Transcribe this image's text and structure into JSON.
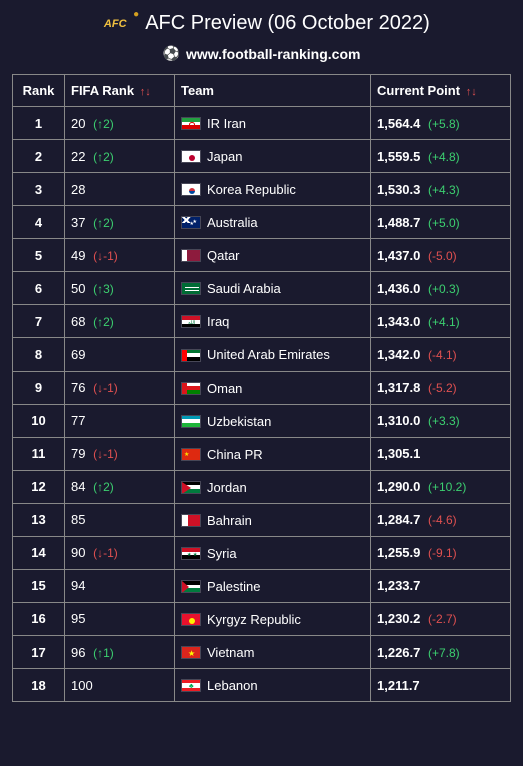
{
  "header": {
    "logo_text": "AFC",
    "title": "AFC Preview (06 October 2022)",
    "site": "www.football-ranking.com"
  },
  "table": {
    "columns": {
      "rank": "Rank",
      "fifa": "FIFA Rank",
      "team": "Team",
      "point": "Current Point"
    },
    "sort_indicator": "↑↓",
    "rows": [
      {
        "rank": "1",
        "fifa": "20",
        "fifa_delta": "↑2",
        "fifa_dir": "up",
        "team": "IR Iran",
        "flag": "iran",
        "point": "1,564.4",
        "pt_delta": "+5.8",
        "pt_dir": "up"
      },
      {
        "rank": "2",
        "fifa": "22",
        "fifa_delta": "↑2",
        "fifa_dir": "up",
        "team": "Japan",
        "flag": "japan",
        "point": "1,559.5",
        "pt_delta": "+4.8",
        "pt_dir": "up"
      },
      {
        "rank": "3",
        "fifa": "28",
        "fifa_delta": "",
        "fifa_dir": "",
        "team": "Korea Republic",
        "flag": "korea",
        "point": "1,530.3",
        "pt_delta": "+4.3",
        "pt_dir": "up"
      },
      {
        "rank": "4",
        "fifa": "37",
        "fifa_delta": "↑2",
        "fifa_dir": "up",
        "team": "Australia",
        "flag": "australia",
        "point": "1,488.7",
        "pt_delta": "+5.0",
        "pt_dir": "up"
      },
      {
        "rank": "5",
        "fifa": "49",
        "fifa_delta": "↓-1",
        "fifa_dir": "down",
        "team": "Qatar",
        "flag": "qatar",
        "point": "1,437.0",
        "pt_delta": "-5.0",
        "pt_dir": "down"
      },
      {
        "rank": "6",
        "fifa": "50",
        "fifa_delta": "↑3",
        "fifa_dir": "up",
        "team": "Saudi Arabia",
        "flag": "saudi",
        "point": "1,436.0",
        "pt_delta": "+0.3",
        "pt_dir": "up"
      },
      {
        "rank": "7",
        "fifa": "68",
        "fifa_delta": "↑2",
        "fifa_dir": "up",
        "team": "Iraq",
        "flag": "iraq",
        "point": "1,343.0",
        "pt_delta": "+4.1",
        "pt_dir": "up"
      },
      {
        "rank": "8",
        "fifa": "69",
        "fifa_delta": "",
        "fifa_dir": "",
        "team": "United Arab Emirates",
        "flag": "uae",
        "point": "1,342.0",
        "pt_delta": "-4.1",
        "pt_dir": "down"
      },
      {
        "rank": "9",
        "fifa": "76",
        "fifa_delta": "↓-1",
        "fifa_dir": "down",
        "team": "Oman",
        "flag": "oman",
        "point": "1,317.8",
        "pt_delta": "-5.2",
        "pt_dir": "down"
      },
      {
        "rank": "10",
        "fifa": "77",
        "fifa_delta": "",
        "fifa_dir": "",
        "team": "Uzbekistan",
        "flag": "uzbekistan",
        "point": "1,310.0",
        "pt_delta": "+3.3",
        "pt_dir": "up"
      },
      {
        "rank": "11",
        "fifa": "79",
        "fifa_delta": "↓-1",
        "fifa_dir": "down",
        "team": "China PR",
        "flag": "china",
        "point": "1,305.1",
        "pt_delta": "",
        "pt_dir": ""
      },
      {
        "rank": "12",
        "fifa": "84",
        "fifa_delta": "↑2",
        "fifa_dir": "up",
        "team": "Jordan",
        "flag": "jordan",
        "point": "1,290.0",
        "pt_delta": "+10.2",
        "pt_dir": "up"
      },
      {
        "rank": "13",
        "fifa": "85",
        "fifa_delta": "",
        "fifa_dir": "",
        "team": "Bahrain",
        "flag": "bahrain",
        "point": "1,284.7",
        "pt_delta": "-4.6",
        "pt_dir": "down"
      },
      {
        "rank": "14",
        "fifa": "90",
        "fifa_delta": "↓-1",
        "fifa_dir": "down",
        "team": "Syria",
        "flag": "syria",
        "point": "1,255.9",
        "pt_delta": "-9.1",
        "pt_dir": "down"
      },
      {
        "rank": "15",
        "fifa": "94",
        "fifa_delta": "",
        "fifa_dir": "",
        "team": "Palestine",
        "flag": "palestine",
        "point": "1,233.7",
        "pt_delta": "",
        "pt_dir": ""
      },
      {
        "rank": "16",
        "fifa": "95",
        "fifa_delta": "",
        "fifa_dir": "",
        "team": "Kyrgyz Republic",
        "flag": "kyrgyz",
        "point": "1,230.2",
        "pt_delta": "-2.7",
        "pt_dir": "down"
      },
      {
        "rank": "17",
        "fifa": "96",
        "fifa_delta": "↑1",
        "fifa_dir": "up",
        "team": "Vietnam",
        "flag": "vietnam",
        "point": "1,226.7",
        "pt_delta": "+7.8",
        "pt_dir": "up"
      },
      {
        "rank": "18",
        "fifa": "100",
        "fifa_delta": "",
        "fifa_dir": "",
        "team": "Lebanon",
        "flag": "lebanon",
        "point": "1,211.7",
        "pt_delta": "",
        "pt_dir": ""
      }
    ]
  },
  "colors": {
    "background": "#1a1a2e",
    "text": "#ffffff",
    "border": "#888888",
    "up": "#3cd070",
    "down": "#e05050",
    "sort": "#e05050"
  }
}
